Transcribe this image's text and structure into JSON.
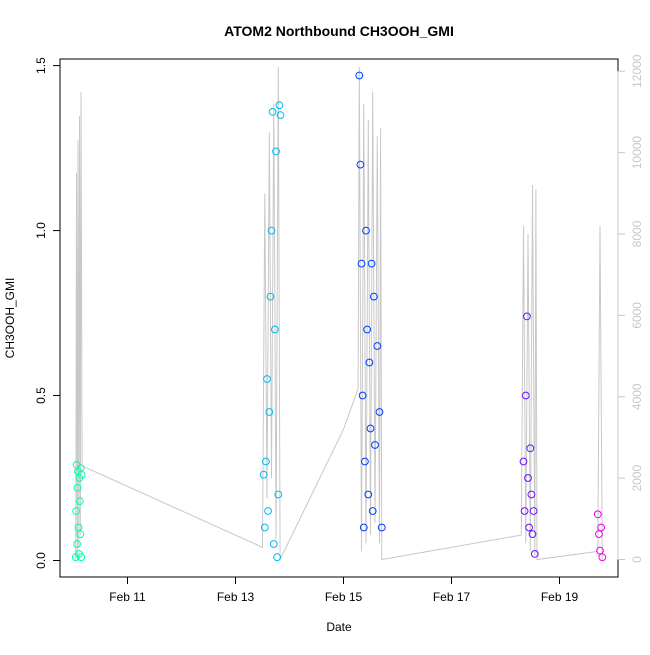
{
  "chart_data": {
    "type": "scatter",
    "title": "ATOM2 Northbound CH3OOH_GMI",
    "xlabel": "Date",
    "ylabel": "CH3OOH_GMI",
    "xlim": [
      "2018-02-09T18:00",
      "2018-02-20T02:00"
    ],
    "ylim": [
      -0.05,
      1.52
    ],
    "y2lim": [
      -430,
      12300
    ],
    "x_ticks": [
      {
        "date": "2018-02-11T00:00",
        "label": "Feb 11"
      },
      {
        "date": "2018-02-13T00:00",
        "label": "Feb 13"
      },
      {
        "date": "2018-02-15T00:00",
        "label": "Feb 15"
      },
      {
        "date": "2018-02-17T00:00",
        "label": "Feb 17"
      },
      {
        "date": "2018-02-19T00:00",
        "label": "Feb 19"
      }
    ],
    "y_ticks": [
      {
        "value": 0.0,
        "label": "0.0"
      },
      {
        "value": 0.5,
        "label": "0.5"
      },
      {
        "value": 1.0,
        "label": "1.0"
      },
      {
        "value": 1.5,
        "label": "1.5"
      }
    ],
    "y2_ticks": [
      {
        "value": 0,
        "label": "0"
      },
      {
        "value": 2000,
        "label": "2000"
      },
      {
        "value": 4000,
        "label": "4000"
      },
      {
        "value": 6000,
        "label": "6000"
      },
      {
        "value": 8000,
        "label": "8000"
      },
      {
        "value": 10000,
        "label": "10000"
      },
      {
        "value": 12000,
        "label": "12000"
      }
    ],
    "grid": false,
    "legend": "none",
    "colors": {
      "flight1": "#00ffaa",
      "flight2": "#00bbf0",
      "flight3": "#0040ff",
      "flight4": "#7010ff",
      "flight5": "#ee00ee",
      "altitude": "#c8c8c8"
    },
    "series": [
      {
        "color_key": "flight1",
        "points": [
          [
            "2018-02-10T01:00",
            0.01
          ],
          [
            "2018-02-10T01:12",
            0.15
          ],
          [
            "2018-02-10T01:24",
            0.29
          ],
          [
            "2018-02-10T01:36",
            0.05
          ],
          [
            "2018-02-10T01:48",
            0.22
          ],
          [
            "2018-02-10T02:00",
            0.27
          ],
          [
            "2018-02-10T02:12",
            0.1
          ],
          [
            "2018-02-10T02:24",
            0.02
          ],
          [
            "2018-02-10T02:36",
            0.25
          ],
          [
            "2018-02-10T02:48",
            0.18
          ],
          [
            "2018-02-10T03:00",
            0.08
          ],
          [
            "2018-02-10T03:12",
            0.28
          ],
          [
            "2018-02-10T03:24",
            0.01
          ],
          [
            "2018-02-10T03:36",
            0.26
          ]
        ]
      },
      {
        "color_key": "flight2",
        "points": [
          [
            "2018-02-13T12:30",
            0.26
          ],
          [
            "2018-02-13T13:00",
            0.1
          ],
          [
            "2018-02-13T13:30",
            0.3
          ],
          [
            "2018-02-13T14:00",
            0.55
          ],
          [
            "2018-02-13T14:30",
            0.15
          ],
          [
            "2018-02-13T15:00",
            0.45
          ],
          [
            "2018-02-13T15:30",
            0.8
          ],
          [
            "2018-02-13T16:00",
            1.0
          ],
          [
            "2018-02-13T16:30",
            1.36
          ],
          [
            "2018-02-13T17:00",
            0.05
          ],
          [
            "2018-02-13T17:30",
            0.7
          ],
          [
            "2018-02-13T18:00",
            1.24
          ],
          [
            "2018-02-13T18:30",
            0.01
          ],
          [
            "2018-02-13T19:00",
            0.2
          ],
          [
            "2018-02-13T19:30",
            1.38
          ],
          [
            "2018-02-13T20:00",
            1.35
          ]
        ]
      },
      {
        "color_key": "flight3",
        "points": [
          [
            "2018-02-15T07:00",
            1.47
          ],
          [
            "2018-02-15T07:30",
            1.2
          ],
          [
            "2018-02-15T08:00",
            0.9
          ],
          [
            "2018-02-15T08:30",
            0.5
          ],
          [
            "2018-02-15T09:00",
            0.1
          ],
          [
            "2018-02-15T09:30",
            0.3
          ],
          [
            "2018-02-15T10:00",
            1.0
          ],
          [
            "2018-02-15T10:30",
            0.7
          ],
          [
            "2018-02-15T11:00",
            0.2
          ],
          [
            "2018-02-15T11:30",
            0.6
          ],
          [
            "2018-02-15T12:00",
            0.4
          ],
          [
            "2018-02-15T12:30",
            0.9
          ],
          [
            "2018-02-15T13:00",
            0.15
          ],
          [
            "2018-02-15T13:30",
            0.8
          ],
          [
            "2018-02-15T14:00",
            0.35
          ],
          [
            "2018-02-15T15:00",
            0.65
          ],
          [
            "2018-02-15T16:00",
            0.45
          ],
          [
            "2018-02-15T17:00",
            0.1
          ]
        ]
      },
      {
        "color_key": "flight4",
        "points": [
          [
            "2018-02-18T08:00",
            0.3
          ],
          [
            "2018-02-18T08:30",
            0.15
          ],
          [
            "2018-02-18T09:00",
            0.5
          ],
          [
            "2018-02-18T09:30",
            0.74
          ],
          [
            "2018-02-18T10:00",
            0.25
          ],
          [
            "2018-02-18T10:30",
            0.1
          ],
          [
            "2018-02-18T11:00",
            0.34
          ],
          [
            "2018-02-18T11:30",
            0.2
          ],
          [
            "2018-02-18T12:00",
            0.08
          ],
          [
            "2018-02-18T12:30",
            0.15
          ],
          [
            "2018-02-18T13:00",
            0.02
          ]
        ]
      },
      {
        "color_key": "flight5",
        "points": [
          [
            "2018-02-19T17:00",
            0.14
          ],
          [
            "2018-02-19T17:30",
            0.08
          ],
          [
            "2018-02-19T18:00",
            0.03
          ],
          [
            "2018-02-19T18:30",
            0.1
          ],
          [
            "2018-02-19T19:00",
            0.01
          ]
        ]
      }
    ],
    "altitude": {
      "color_key": "altitude",
      "points": [
        [
          "2018-02-10T01:00",
          0
        ],
        [
          "2018-02-10T01:20",
          9500
        ],
        [
          "2018-02-10T01:40",
          0
        ],
        [
          "2018-02-10T02:00",
          10300
        ],
        [
          "2018-02-10T02:20",
          300
        ],
        [
          "2018-02-10T02:40",
          10900
        ],
        [
          "2018-02-10T03:00",
          600
        ],
        [
          "2018-02-10T03:20",
          11500
        ],
        [
          "2018-02-10T03:50",
          2300
        ],
        [
          "2018-02-13T12:00",
          300
        ],
        [
          "2018-02-13T13:00",
          9000
        ],
        [
          "2018-02-13T14:00",
          1500
        ],
        [
          "2018-02-13T15:00",
          10500
        ],
        [
          "2018-02-13T16:00",
          2000
        ],
        [
          "2018-02-13T17:00",
          11200
        ],
        [
          "2018-02-13T18:00",
          500
        ],
        [
          "2018-02-13T19:00",
          12100
        ],
        [
          "2018-02-13T19:50",
          0
        ],
        [
          "2018-02-15T00:00",
          3200
        ],
        [
          "2018-02-15T06:30",
          4200
        ],
        [
          "2018-02-15T07:00",
          12100
        ],
        [
          "2018-02-15T08:00",
          200
        ],
        [
          "2018-02-15T09:00",
          11200
        ],
        [
          "2018-02-15T10:00",
          400
        ],
        [
          "2018-02-15T11:00",
          10800
        ],
        [
          "2018-02-15T12:00",
          600
        ],
        [
          "2018-02-15T13:00",
          11500
        ],
        [
          "2018-02-15T14:00",
          900
        ],
        [
          "2018-02-15T15:00",
          10400
        ],
        [
          "2018-02-15T16:00",
          400
        ],
        [
          "2018-02-15T16:30",
          10600
        ],
        [
          "2018-02-15T17:00",
          0
        ],
        [
          "2018-02-18T07:00",
          600
        ],
        [
          "2018-02-18T08:00",
          8200
        ],
        [
          "2018-02-18T09:00",
          400
        ],
        [
          "2018-02-18T10:00",
          8000
        ],
        [
          "2018-02-18T11:00",
          200
        ],
        [
          "2018-02-18T12:00",
          9200
        ],
        [
          "2018-02-18T13:00",
          100
        ],
        [
          "2018-02-18T13:30",
          9100
        ],
        [
          "2018-02-18T14:00",
          0
        ],
        [
          "2018-02-19T17:00",
          200
        ],
        [
          "2018-02-19T18:00",
          8200
        ],
        [
          "2018-02-19T19:00",
          0
        ]
      ]
    }
  }
}
